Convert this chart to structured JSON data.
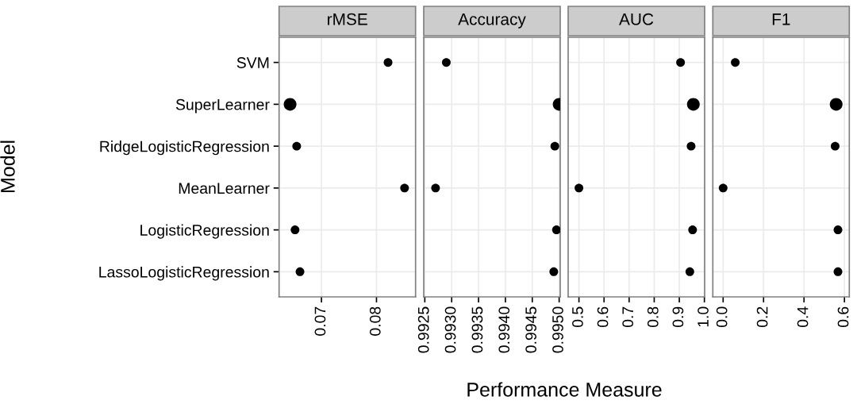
{
  "chart_data": [
    {
      "type": "bubble",
      "orientation": "horizontal",
      "title": "rMSE",
      "ylabel": "Model",
      "xlabel": "Performance Measure",
      "categories": [
        "SVM",
        "SuperLearner",
        "RidgeLogisticRegression",
        "MeanLearner",
        "LogisticRegression",
        "LassoLogisticRegression"
      ],
      "values": [
        0.0821,
        0.0643,
        0.0655,
        0.0851,
        0.0652,
        0.0661
      ],
      "sizes": [
        0.47,
        1,
        0.47,
        0.47,
        0.47,
        0.47
      ],
      "color": "#000000",
      "xlim": [
        0.0623,
        0.0871
      ],
      "xticks": [
        {
          "value": 0.07,
          "label": "0.07"
        },
        {
          "value": 0.08,
          "label": "0.08"
        }
      ],
      "grid": true
    },
    {
      "type": "bubble",
      "orientation": "horizontal",
      "title": "Accuracy",
      "categories": [
        null,
        null,
        null,
        null,
        null,
        null
      ],
      "values": [
        0.9929,
        0.995,
        0.99492,
        0.9927,
        0.99495,
        0.9949
      ],
      "sizes": [
        0.47,
        1,
        0.47,
        0.47,
        0.47,
        0.47
      ],
      "color": "#000000",
      "xlim": [
        0.99248,
        0.99502
      ],
      "xticks": [
        {
          "value": 0.9925,
          "label": "0.9925"
        },
        {
          "value": 0.993,
          "label": "0.9930"
        },
        {
          "value": 0.9935,
          "label": "0.9935"
        },
        {
          "value": 0.994,
          "label": "0.9940"
        },
        {
          "value": 0.9945,
          "label": "0.9945"
        },
        {
          "value": 0.995,
          "label": "0.9950"
        }
      ],
      "grid": true,
      "tick_labels": "x"
    },
    {
      "type": "bubble",
      "orientation": "horizontal",
      "title": "AUC",
      "categories": [
        null,
        null,
        null,
        null,
        null,
        null
      ],
      "values": [
        0.905,
        0.956,
        0.947,
        0.5,
        0.953,
        0.942
      ],
      "sizes": [
        0.47,
        1,
        0.47,
        0.47,
        0.47,
        0.47
      ],
      "color": "#000000",
      "xlim": [
        0.457,
        1.001
      ],
      "xticks": [
        0.5,
        0.6,
        0.7,
        0.8,
        0.9,
        {
          "value": 1.0,
          "label": "1.0"
        }
      ],
      "grid": true,
      "tick_labels": "x"
    },
    {
      "type": "bubble",
      "orientation": "horizontal",
      "title": "F1",
      "categories": [
        null,
        null,
        null,
        null,
        null,
        null
      ],
      "values": [
        0.06,
        0.559,
        0.554,
        0.0,
        0.568,
        0.568
      ],
      "sizes": [
        0.47,
        1,
        0.47,
        0.47,
        0.47,
        0.47
      ],
      "color": "#000000",
      "xlim": [
        -0.051,
        0.624
      ],
      "xticks": [
        {
          "value": 0.0,
          "label": "0.0"
        },
        0.2,
        0.4,
        0.6
      ],
      "grid": true,
      "tick_labels": "x"
    }
  ]
}
